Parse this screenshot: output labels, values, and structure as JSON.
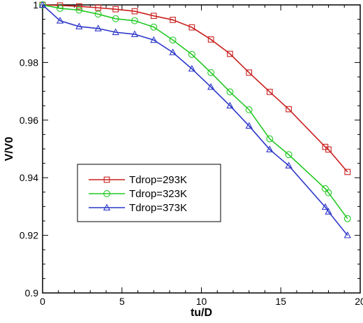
{
  "chart_data": {
    "type": "line",
    "xlabel": "tu/D",
    "ylabel": "V/V0",
    "xlim": [
      0,
      20
    ],
    "ylim": [
      0.9,
      1.0
    ],
    "x_ticks": [
      0,
      5,
      10,
      15,
      20
    ],
    "y_ticks": [
      0.9,
      0.92,
      0.94,
      0.96,
      0.98,
      1.0
    ],
    "x_tick_labels": [
      "0",
      "5",
      "10",
      "15",
      "20"
    ],
    "y_tick_labels": [
      "0.9",
      "0.92",
      "0.94",
      "0.96",
      "0.98",
      "1"
    ],
    "legend_position": "lower-left",
    "grid": false,
    "series": [
      {
        "name": "Tdrop=293K",
        "color": "#c8201e",
        "marker": "square",
        "x": [
          0,
          1.1,
          2.3,
          3.5,
          4.6,
          5.8,
          7.0,
          8.2,
          9.4,
          10.6,
          11.8,
          13.0,
          14.3,
          15.5,
          17.8,
          18.0,
          19.2
        ],
        "y": [
          1.0,
          0.9998,
          0.9995,
          0.999,
          0.9985,
          0.9978,
          0.9962,
          0.9948,
          0.9922,
          0.988,
          0.983,
          0.9765,
          0.9698,
          0.9638,
          0.9507,
          0.9498,
          0.942
        ]
      },
      {
        "name": "Tdrop=323K",
        "color": "#22c822",
        "marker": "circle",
        "x": [
          0,
          1.1,
          2.3,
          3.5,
          4.6,
          5.8,
          7.0,
          8.2,
          9.4,
          10.6,
          11.8,
          13.0,
          14.3,
          15.5,
          17.8,
          18.0,
          19.2
        ],
        "y": [
          1.0,
          0.9988,
          0.9982,
          0.9968,
          0.9952,
          0.9945,
          0.9923,
          0.9878,
          0.9828,
          0.9765,
          0.9698,
          0.9636,
          0.9535,
          0.948,
          0.9362,
          0.9348,
          0.9258
        ]
      },
      {
        "name": "Tdrop=373K",
        "color": "#2c36c8",
        "marker": "triangle",
        "x": [
          0,
          1.1,
          2.3,
          3.5,
          4.6,
          5.8,
          7.0,
          8.2,
          9.4,
          10.6,
          11.8,
          13.0,
          14.3,
          15.5,
          17.8,
          18.0,
          19.2
        ],
        "y": [
          1.0,
          0.9945,
          0.9925,
          0.9918,
          0.9905,
          0.9898,
          0.9878,
          0.9835,
          0.9778,
          0.9715,
          0.965,
          0.958,
          0.9498,
          0.9442,
          0.9298,
          0.9282,
          0.92
        ]
      }
    ]
  }
}
